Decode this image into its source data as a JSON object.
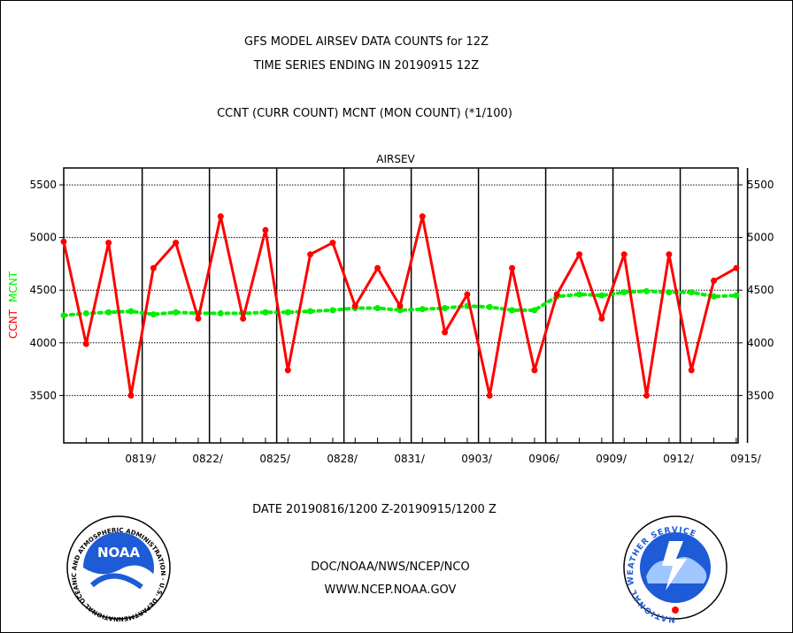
{
  "header": {
    "title_line1": "GFS MODEL AIRSEV DATA COUNTS for 12Z",
    "title_line2": "TIME SERIES ENDING IN 20190915 12Z",
    "subtitle": "CCNT (CURR COUNT) MCNT (MON COUNT) (*1/100)"
  },
  "footer": {
    "date_range": "DATE 20190816/1200 Z-20190915/1200 Z",
    "org": "DOC/NOAA/NWS/NCEP/NCO",
    "url": "WWW.NCEP.NOAA.GOV",
    "noaa_logo_text": "NOAA",
    "noaa_logo_ring": "NATIONAL OCEANIC AND ATMOSPHERIC ADMINISTRATION · U.S. DEPARTMENT OF COMMERCE",
    "nws_logo_ring": "NATIONAL WEATHER SERVICE"
  },
  "colors": {
    "ccnt": "#ff0000",
    "mcnt": "#00ee00",
    "plot_label": "#0000cc",
    "footer_link": "#0000cc",
    "date_text": "#ff0000"
  },
  "chart_data": {
    "type": "line",
    "title": "AIRSEV",
    "ylabel_left": [
      "CCNT",
      "MCNT"
    ],
    "x": [
      "0816",
      "0817",
      "0818",
      "0819",
      "0820",
      "0821",
      "0822",
      "0823",
      "0824",
      "0825",
      "0826",
      "0827",
      "0828",
      "0829",
      "0830",
      "0831",
      "0901",
      "0902",
      "0903",
      "0904",
      "0905",
      "0906",
      "0907",
      "0908",
      "0909",
      "0910",
      "0911",
      "0912",
      "0913",
      "0914",
      "0915"
    ],
    "x_tick_labels": [
      "0819/",
      "0822/",
      "0825/",
      "0828/",
      "0831/",
      "0903/",
      "0906/",
      "0909/",
      "0912/",
      "0915/"
    ],
    "y_ticks": [
      3500,
      4000,
      4500,
      5000,
      5500
    ],
    "ylim": [
      3050,
      5660
    ],
    "grid": true,
    "series": [
      {
        "name": "CCNT",
        "values": [
          4960,
          3990,
          4950,
          3500,
          4710,
          4950,
          4230,
          5200,
          4230,
          5070,
          3740,
          4840,
          4950,
          4350,
          4710,
          4350,
          5200,
          4100,
          4460,
          3500,
          4710,
          3740,
          4460,
          4840,
          4230,
          4840,
          3500,
          4840,
          3740,
          4590,
          4710
        ]
      },
      {
        "name": "MCNT",
        "values": [
          4260,
          4280,
          4290,
          4300,
          4270,
          4290,
          4280,
          4280,
          4280,
          4290,
          4290,
          4300,
          4310,
          4330,
          4330,
          4310,
          4320,
          4330,
          4350,
          4340,
          4310,
          4310,
          4440,
          4460,
          4450,
          4480,
          4490,
          4480,
          4480,
          4440,
          4450
        ]
      }
    ]
  }
}
